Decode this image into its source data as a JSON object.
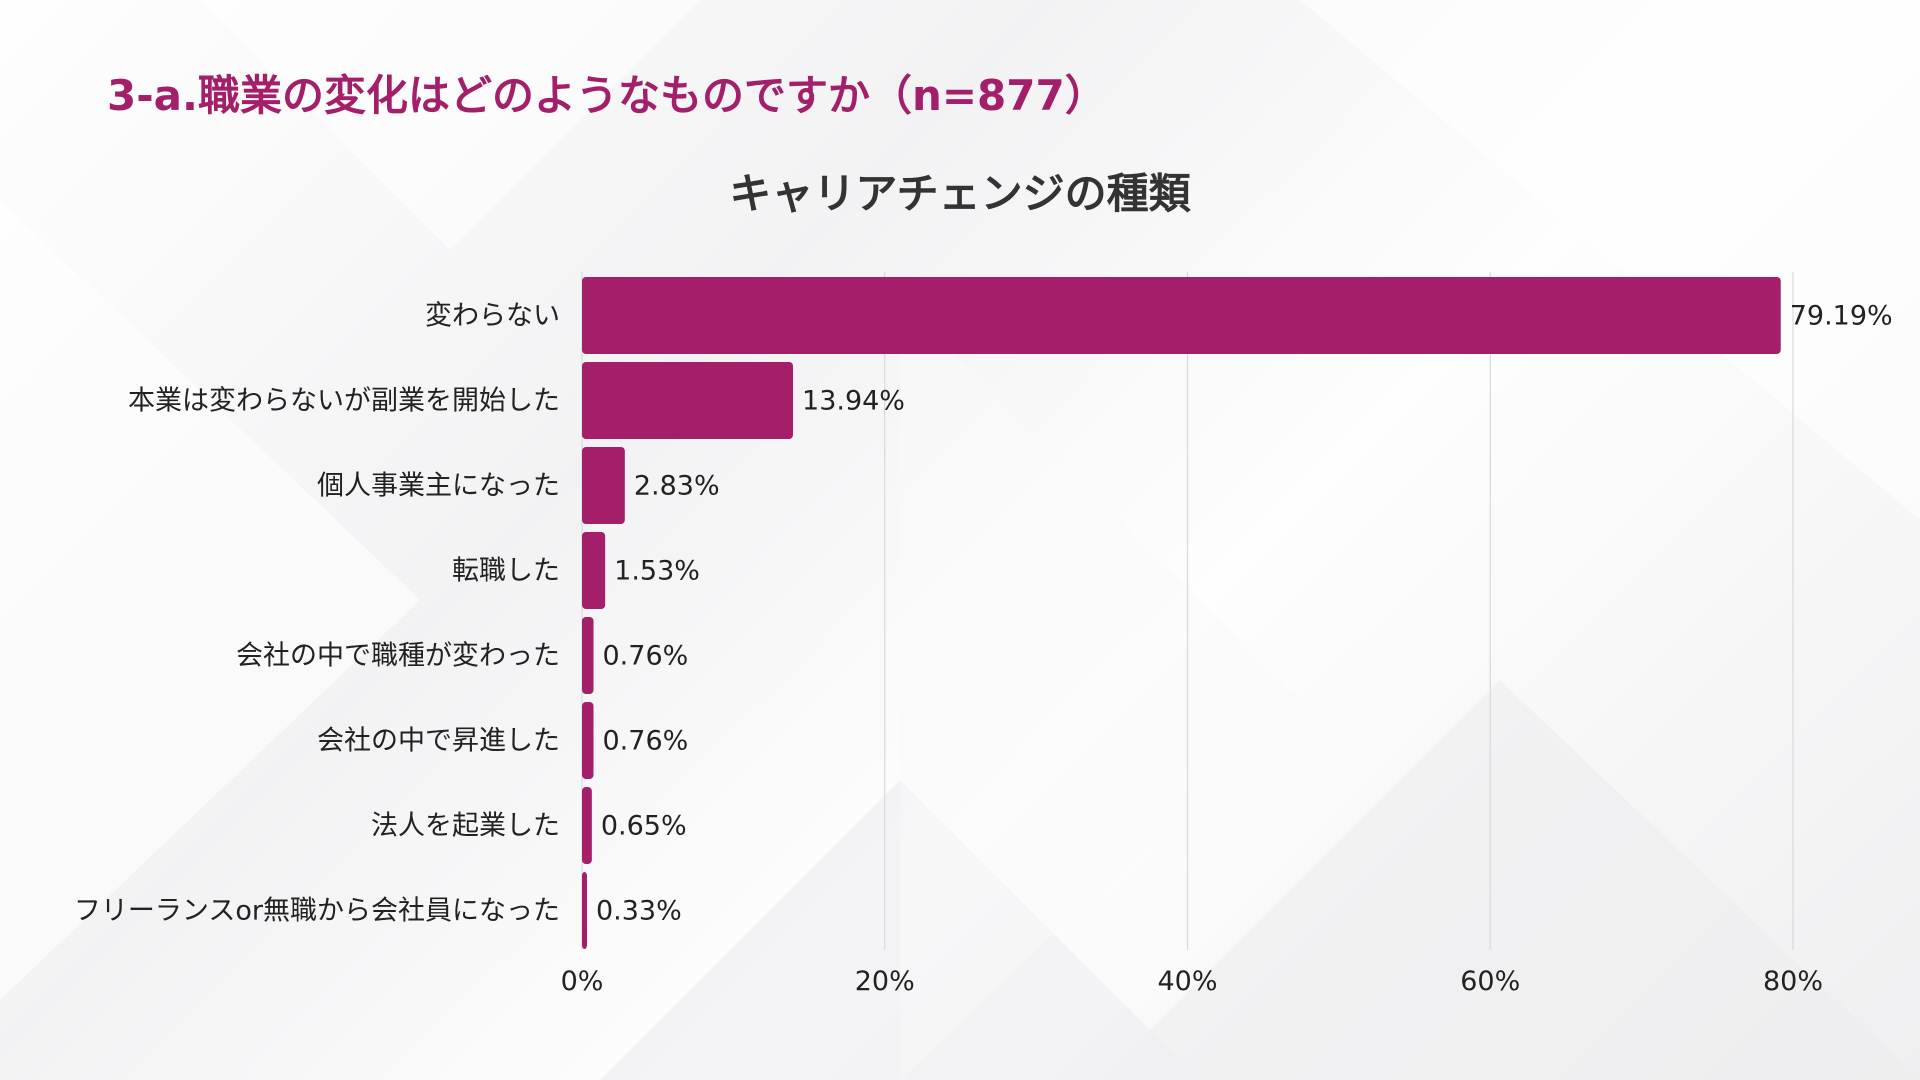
{
  "header": {
    "section_title": "3-a.職業の変化はどのようなものですか（n=877）"
  },
  "colors": {
    "accent": "#a31f69",
    "title_text": "#333333",
    "gridline": "#d9d9d9"
  },
  "chart_data": {
    "type": "bar",
    "orientation": "horizontal",
    "title": "キャリアチェンジの種類",
    "categories": [
      "変わらない",
      "本業は変わらないが副業を開始した",
      "個人事業主になった",
      "転職した",
      "会社の中で職種が変わった",
      "会社の中で昇進した",
      "法人を起業した",
      "フリーランスor無職から会社員になった"
    ],
    "values": [
      79.19,
      13.94,
      2.83,
      1.53,
      0.76,
      0.76,
      0.65,
      0.33
    ],
    "value_labels": [
      "79.19%",
      "13.94%",
      "2.83%",
      "1.53%",
      "0.76%",
      "0.76%",
      "0.65%",
      "0.33%"
    ],
    "xlim": [
      0,
      80
    ],
    "xticks": [
      0,
      20,
      40,
      60,
      80
    ],
    "xtick_labels": [
      "0%",
      "20%",
      "40%",
      "60%",
      "80%"
    ],
    "xlabel": "",
    "ylabel": "",
    "grid": true
  }
}
